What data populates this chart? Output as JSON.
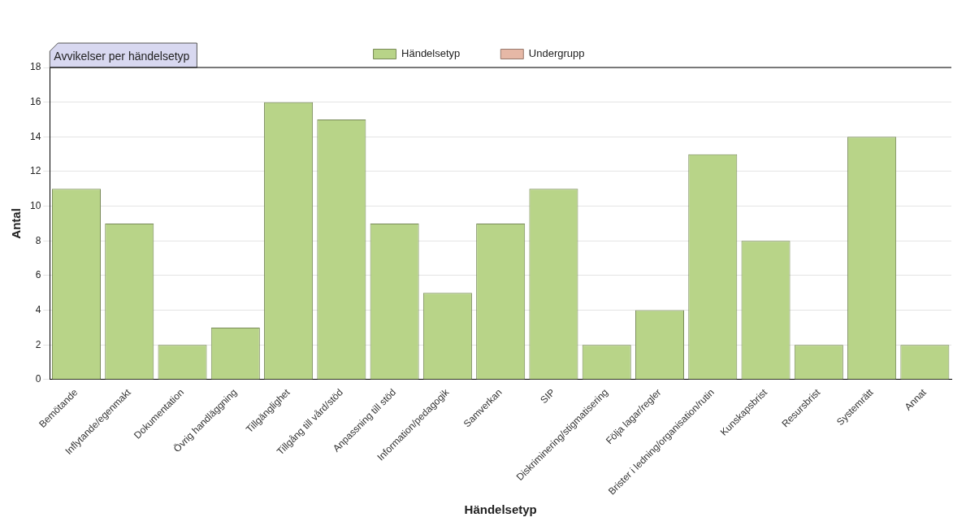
{
  "chart_data": {
    "type": "bar",
    "title": "Avvikelser per händelsetyp",
    "xlabel": "Händelsetyp",
    "ylabel": "Antal",
    "categories": [
      "Bemötande",
      "Inflytande/egenmakt",
      "Dokumentation",
      "Övrig handläggning",
      "Tillgänglighet",
      "Tillgång till vård/stöd",
      "Anpassning till stöd",
      "Information/pedagogik",
      "Samverkan",
      "SIP",
      "Diskriminering/stigmatisering",
      "Följa lagar/regler",
      "Brister i ledning/organisation/rutin",
      "Kunskapsbrist",
      "Resursbrist",
      "Systemrätt",
      "Annat"
    ],
    "series": [
      {
        "name": "Händelsetyp",
        "color": "#b8d488",
        "values": [
          11,
          9,
          2,
          3,
          16,
          15,
          9,
          5,
          9,
          11,
          2,
          4,
          13,
          8,
          2,
          14,
          2
        ]
      },
      {
        "name": "Undergrupp",
        "color": "#e6b8a6",
        "values": [
          null,
          null,
          null,
          null,
          null,
          null,
          null,
          null,
          null,
          null,
          null,
          null,
          null,
          null,
          null,
          null,
          null
        ]
      }
    ],
    "ylim": [
      0,
      18
    ],
    "yticks": [
      0,
      2,
      4,
      6,
      8,
      10,
      12,
      14,
      16,
      18
    ],
    "grid": "y",
    "legend": "top"
  }
}
